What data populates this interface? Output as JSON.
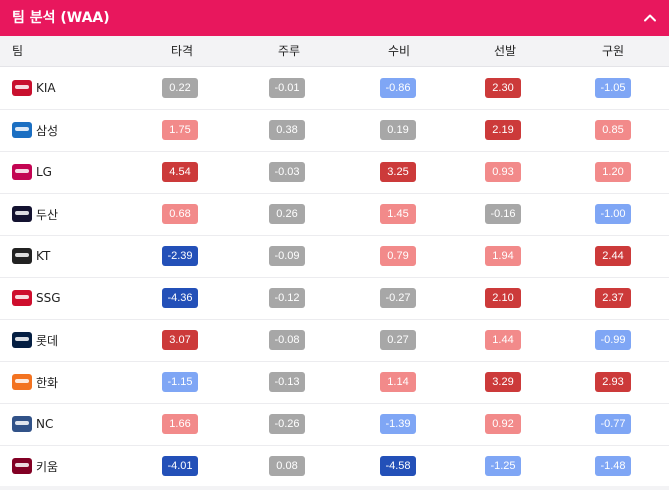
{
  "header": {
    "title": "팀 분석 (WAA)"
  },
  "columns": [
    "팀",
    "타격",
    "주루",
    "수비",
    "선발",
    "구원"
  ],
  "colors": {
    "neutral": "#a7a7a7",
    "pos_light": "#f28a8a",
    "pos_strong": "#cc3a3a",
    "neg_light": "#7fa6f5",
    "neg_strong": "#2350b8",
    "header": "#e8175d"
  },
  "rows": [
    {
      "team": "KIA",
      "logo_color": "#c8102e",
      "values": [
        {
          "v": "0.22",
          "c": "neutral"
        },
        {
          "v": "-0.01",
          "c": "neutral"
        },
        {
          "v": "-0.86",
          "c": "neg_light"
        },
        {
          "v": "2.30",
          "c": "pos_strong"
        },
        {
          "v": "-1.05",
          "c": "neg_light"
        }
      ]
    },
    {
      "team": "삼성",
      "logo_color": "#1b6fc2",
      "values": [
        {
          "v": "1.75",
          "c": "pos_light"
        },
        {
          "v": "0.38",
          "c": "neutral"
        },
        {
          "v": "0.19",
          "c": "neutral"
        },
        {
          "v": "2.19",
          "c": "pos_strong"
        },
        {
          "v": "0.85",
          "c": "pos_light"
        }
      ]
    },
    {
      "team": "LG",
      "logo_color": "#c30452",
      "values": [
        {
          "v": "4.54",
          "c": "pos_strong"
        },
        {
          "v": "-0.03",
          "c": "neutral"
        },
        {
          "v": "3.25",
          "c": "pos_strong"
        },
        {
          "v": "0.93",
          "c": "pos_light"
        },
        {
          "v": "1.20",
          "c": "pos_light"
        }
      ]
    },
    {
      "team": "두산",
      "logo_color": "#131230",
      "values": [
        {
          "v": "0.68",
          "c": "pos_light"
        },
        {
          "v": "0.26",
          "c": "neutral"
        },
        {
          "v": "1.45",
          "c": "pos_light"
        },
        {
          "v": "-0.16",
          "c": "neutral"
        },
        {
          "v": "-1.00",
          "c": "neg_light"
        }
      ]
    },
    {
      "team": "KT",
      "logo_color": "#222222",
      "values": [
        {
          "v": "-2.39",
          "c": "neg_strong"
        },
        {
          "v": "-0.09",
          "c": "neutral"
        },
        {
          "v": "0.79",
          "c": "pos_light"
        },
        {
          "v": "1.94",
          "c": "pos_light"
        },
        {
          "v": "2.44",
          "c": "pos_strong"
        }
      ]
    },
    {
      "team": "SSG",
      "logo_color": "#ce0e2d",
      "values": [
        {
          "v": "-4.36",
          "c": "neg_strong"
        },
        {
          "v": "-0.12",
          "c": "neutral"
        },
        {
          "v": "-0.27",
          "c": "neutral"
        },
        {
          "v": "2.10",
          "c": "pos_strong"
        },
        {
          "v": "2.37",
          "c": "pos_strong"
        }
      ]
    },
    {
      "team": "롯데",
      "logo_color": "#041e42",
      "values": [
        {
          "v": "3.07",
          "c": "pos_strong"
        },
        {
          "v": "-0.08",
          "c": "neutral"
        },
        {
          "v": "0.27",
          "c": "neutral"
        },
        {
          "v": "1.44",
          "c": "pos_light"
        },
        {
          "v": "-0.99",
          "c": "neg_light"
        }
      ]
    },
    {
      "team": "한화",
      "logo_color": "#f37321",
      "values": [
        {
          "v": "-1.15",
          "c": "neg_light"
        },
        {
          "v": "-0.13",
          "c": "neutral"
        },
        {
          "v": "1.14",
          "c": "pos_light"
        },
        {
          "v": "3.29",
          "c": "pos_strong"
        },
        {
          "v": "2.93",
          "c": "pos_strong"
        }
      ]
    },
    {
      "team": "NC",
      "logo_color": "#315288",
      "values": [
        {
          "v": "1.66",
          "c": "pos_light"
        },
        {
          "v": "-0.26",
          "c": "neutral"
        },
        {
          "v": "-1.39",
          "c": "neg_light"
        },
        {
          "v": "0.92",
          "c": "pos_light"
        },
        {
          "v": "-0.77",
          "c": "neg_light"
        }
      ]
    },
    {
      "team": "키움",
      "logo_color": "#820024",
      "values": [
        {
          "v": "-4.01",
          "c": "neg_strong"
        },
        {
          "v": "0.08",
          "c": "neutral"
        },
        {
          "v": "-4.58",
          "c": "neg_strong"
        },
        {
          "v": "-1.25",
          "c": "neg_light"
        },
        {
          "v": "-1.48",
          "c": "neg_light"
        }
      ]
    }
  ]
}
